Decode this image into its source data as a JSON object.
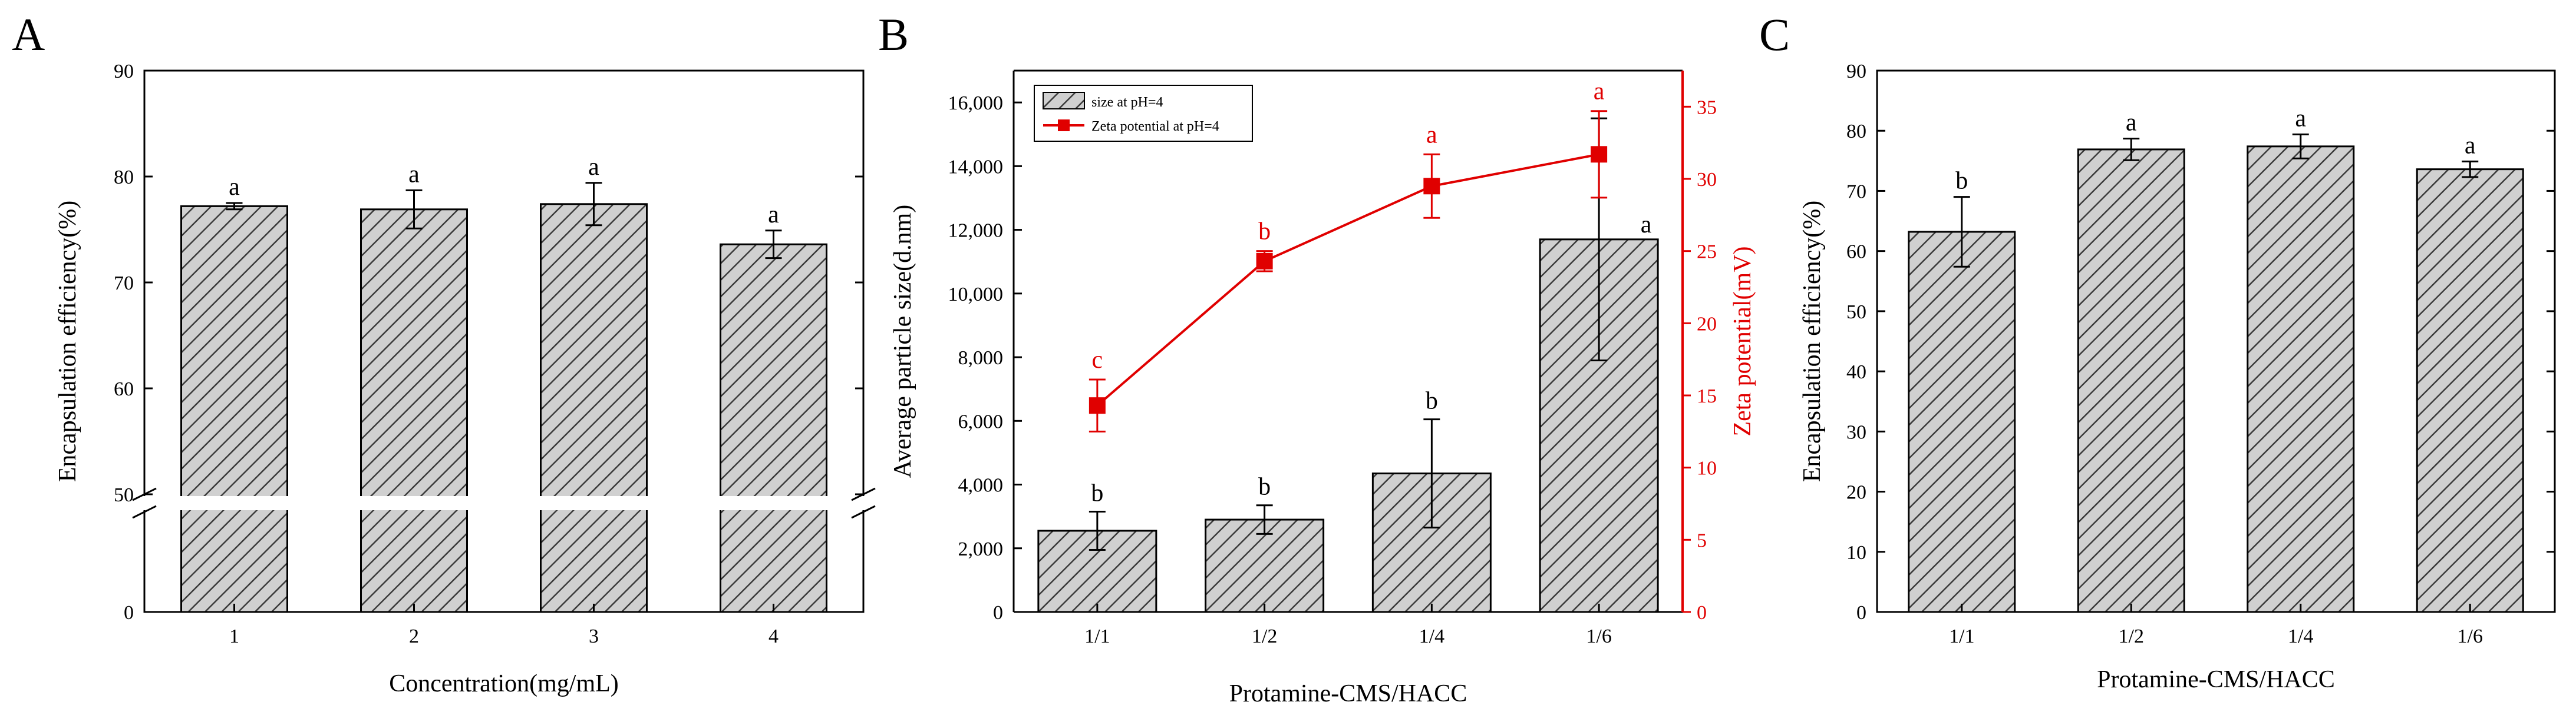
{
  "colors": {
    "bar_fill": "#d0d0d0",
    "hatch": "#3a3a3a",
    "axis": "#000000",
    "zeta": "#e00000"
  },
  "chart_data": [
    {
      "panel_label": "A",
      "type": "bar",
      "broken_axis": true,
      "xlabel": "Concentration(mg/mL)",
      "ylabel": "Encapsulation efficiency(%)",
      "categories": [
        "1",
        "2",
        "3",
        "4"
      ],
      "values": [
        77.2,
        76.9,
        77.4,
        73.6
      ],
      "errors": [
        0.3,
        1.8,
        2.0,
        1.3
      ],
      "letters": [
        "a",
        "a",
        "a",
        "a"
      ],
      "y_ticks": [
        {
          "label": "0",
          "value": 0
        },
        {
          "label": "50",
          "value": 50
        },
        {
          "label": "60",
          "value": 60
        },
        {
          "label": "70",
          "value": 70
        },
        {
          "label": "80",
          "value": 80
        },
        {
          "label": "90",
          "value": 90
        }
      ],
      "ylim": [
        0,
        90
      ]
    },
    {
      "panel_label": "B",
      "type": "bar",
      "xlabel": "Protamine-CMS/HACC",
      "ylabel": "Average particle size(d.nm)",
      "y2label": "Zeta potential(mV)",
      "categories": [
        "1/1",
        "1/2",
        "1/4",
        "1/6"
      ],
      "values": [
        2550,
        2900,
        4350,
        11700
      ],
      "errors": [
        600,
        450,
        1700,
        3800
      ],
      "letters": [
        "b",
        "b",
        "b",
        "a"
      ],
      "ylim": [
        0,
        17000
      ],
      "y_ticks": [
        {
          "label": "0",
          "value": 0
        },
        {
          "label": "2,000",
          "value": 2000
        },
        {
          "label": "4,000",
          "value": 4000
        },
        {
          "label": "6,000",
          "value": 6000
        },
        {
          "label": "8,000",
          "value": 8000
        },
        {
          "label": "10,000",
          "value": 10000
        },
        {
          "label": "12,000",
          "value": 12000
        },
        {
          "label": "14,000",
          "value": 14000
        },
        {
          "label": "16,000",
          "value": 16000
        }
      ],
      "y2lim": [
        0,
        37.5
      ],
      "y2_ticks": [
        "0",
        "5",
        "10",
        "15",
        "20",
        "25",
        "30",
        "35"
      ],
      "series2": {
        "name": "Zeta potential at pH=4",
        "values": [
          14.3,
          24.3,
          29.5,
          31.7
        ],
        "errors": [
          1.8,
          0.7,
          2.2,
          3.0
        ],
        "letters": [
          "c",
          "b",
          "a",
          "a"
        ]
      },
      "legend": {
        "position": "top-left",
        "entries": [
          "size at pH=4",
          "Zeta potential at pH=4"
        ]
      }
    },
    {
      "panel_label": "C",
      "type": "bar",
      "xlabel": "Protamine-CMS/HACC",
      "ylabel": "Encapsulation efficiency(%)",
      "categories": [
        "1/1",
        "1/2",
        "1/4",
        "1/6"
      ],
      "values": [
        63.2,
        76.9,
        77.4,
        73.6
      ],
      "errors": [
        5.8,
        1.8,
        2.0,
        1.3
      ],
      "letters": [
        "b",
        "a",
        "a",
        "a"
      ],
      "ylim": [
        0,
        90
      ],
      "y_ticks": [
        {
          "label": "0",
          "value": 0
        },
        {
          "label": "10",
          "value": 10
        },
        {
          "label": "20",
          "value": 20
        },
        {
          "label": "30",
          "value": 30
        },
        {
          "label": "40",
          "value": 40
        },
        {
          "label": "50",
          "value": 50
        },
        {
          "label": "60",
          "value": 60
        },
        {
          "label": "70",
          "value": 70
        },
        {
          "label": "80",
          "value": 80
        },
        {
          "label": "90",
          "value": 90
        }
      ]
    }
  ]
}
